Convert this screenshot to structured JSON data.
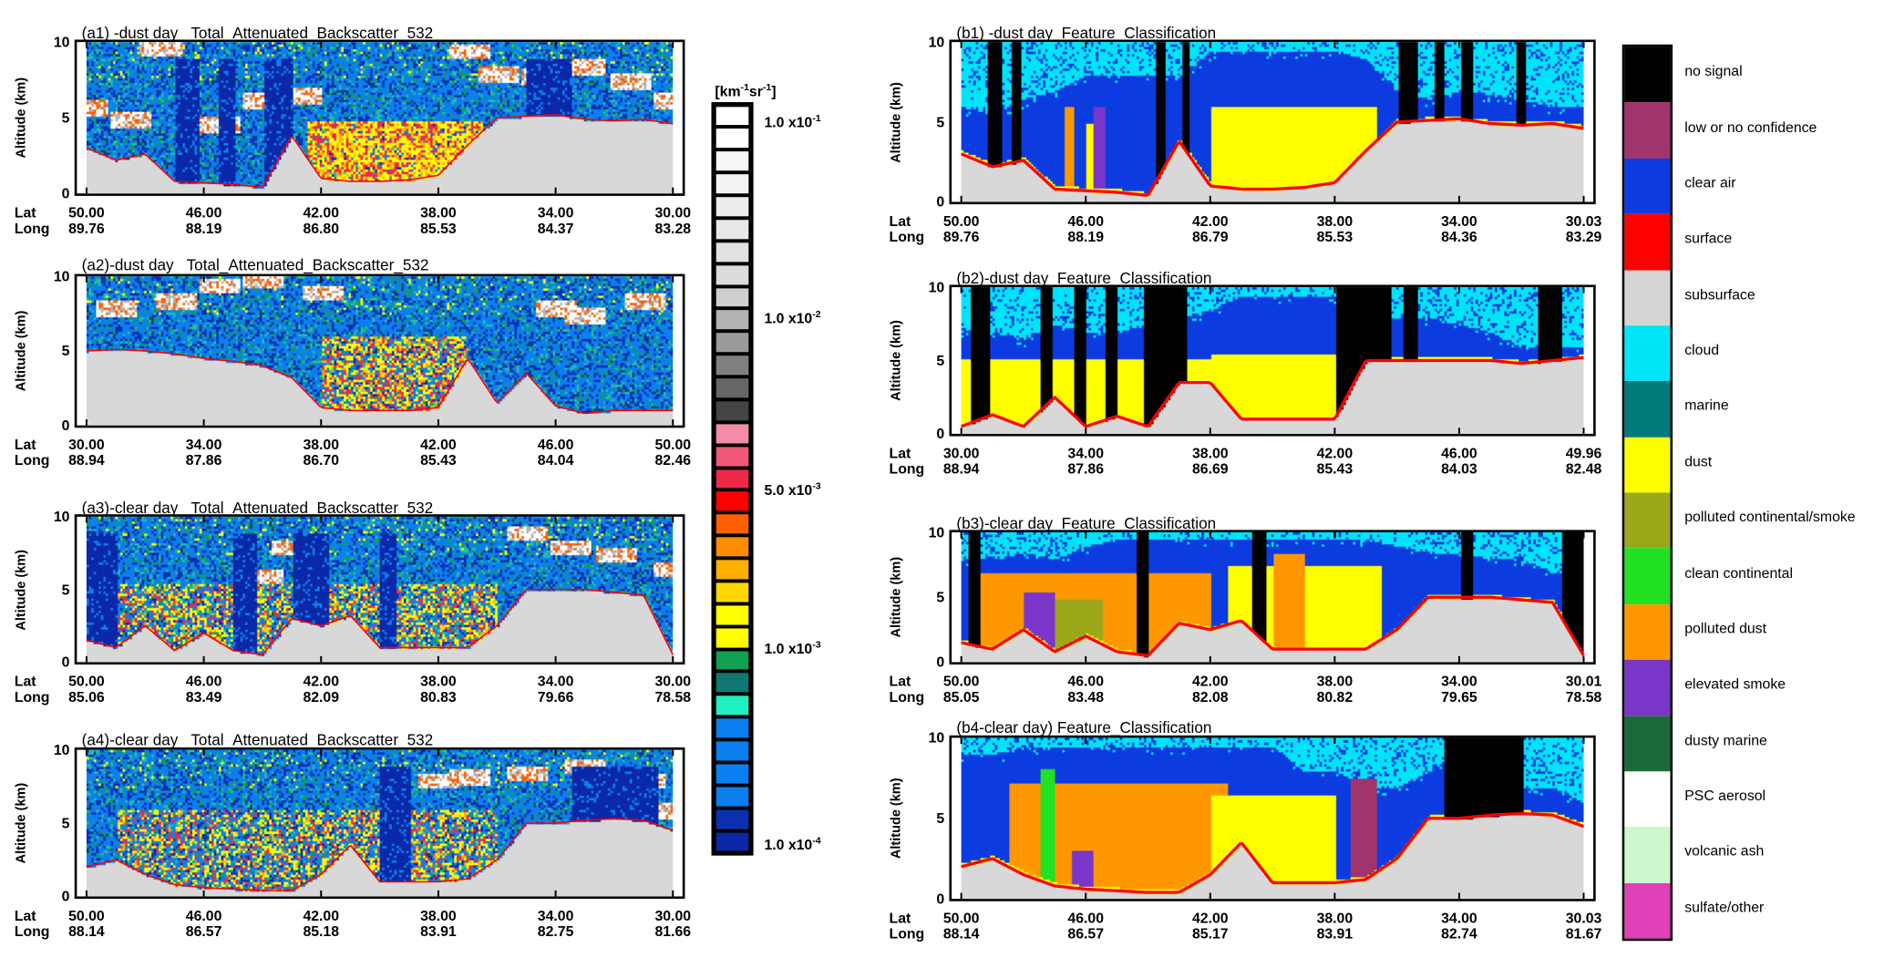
{
  "colorbar": {
    "unit": "[km-1sr-1]",
    "unit_base": "[km",
    "unit_sup1": "-1",
    "unit_mid": "sr",
    "unit_sup2": "-1",
    "unit_end": "]",
    "ticks": [
      {
        "label": "1.0 x10",
        "exp": "-1"
      },
      {
        "label": "1.0 x10",
        "exp": "-2"
      },
      {
        "label": "5.0 x10",
        "exp": "-3"
      },
      {
        "label": "1.0 x10",
        "exp": "-3"
      },
      {
        "label": "1.0 x10",
        "exp": "-4"
      }
    ],
    "swatches": [
      "#ffffff",
      "#ffffff",
      "#f7f7f7",
      "#f2f2f2",
      "#ececec",
      "#e8e8e8",
      "#e2e2e2",
      "#dcdcdc",
      "#cfcfcf",
      "#b4b4b4",
      "#9a9a9a",
      "#808080",
      "#666666",
      "#444444",
      "#f48ca8",
      "#f0587a",
      "#f02848",
      "#ff0000",
      "#ff6000",
      "#ff8c00",
      "#ffb000",
      "#ffd800",
      "#ffff00",
      "#ffff00",
      "#10a050",
      "#107870",
      "#20f0c0",
      "#0a80f0",
      "#0a80f0",
      "#0a80f0",
      "#0a80f0",
      "#0a30b0",
      "#0a28a8"
    ]
  },
  "legend": [
    {
      "label": "no signal",
      "color": "#000000"
    },
    {
      "label": "low or no confidence",
      "color": "#a0346c"
    },
    {
      "label": "clear air",
      "color": "#0c3ce0"
    },
    {
      "label": "surface",
      "color": "#ff0000"
    },
    {
      "label": "subsurface",
      "color": "#d4d4d4"
    },
    {
      "label": "cloud",
      "color": "#00e4f8"
    },
    {
      "label": "marine",
      "color": "#007a7a"
    },
    {
      "label": "dust",
      "color": "#ffff00"
    },
    {
      "label": "polluted continental/smoke",
      "color": "#9aa81a"
    },
    {
      "label": "clean continental",
      "color": "#22e022"
    },
    {
      "label": "polluted dust",
      "color": "#ff9800"
    },
    {
      "label": "elevated smoke",
      "color": "#7a36c8"
    },
    {
      "label": "dusty marine",
      "color": "#1c6a38"
    },
    {
      "label": "PSC aerosol",
      "color": "#ffffff"
    },
    {
      "label": "volcanic ash",
      "color": "#cdf7cd"
    },
    {
      "label": "sulfate/other",
      "color": "#e040b8"
    }
  ],
  "chart_data": [
    {
      "id": "a1",
      "type": "heatmap",
      "title": "(a1) -dust day   Total_Attenuated_Backscatter_532",
      "ylabel": "Altitude (km)",
      "ylim": [
        0,
        10
      ],
      "yticks": [
        "0",
        "5",
        "10"
      ],
      "xrow_labels": [
        "Lat",
        "Long"
      ],
      "lat": [
        "50.00",
        "46.00",
        "42.00",
        "38.00",
        "34.00",
        "30.00"
      ],
      "lon": [
        "89.76",
        "88.19",
        "86.80",
        "85.53",
        "84.37",
        "83.28"
      ],
      "surface_km": [
        3,
        2.2,
        2.6,
        0.8,
        0.7,
        0.6,
        0.4,
        3.8,
        1.0,
        0.8,
        0.8,
        0.9,
        1.2,
        3.2,
        5.0,
        5.1,
        5.2,
        4.9,
        4.8,
        4.9,
        4.6
      ],
      "aerosol": {
        "from": 7.5,
        "to": 13.5,
        "top_km": 4.8,
        "strength": 0.9
      },
      "clouds_km": [
        [
          0,
          5.8
        ],
        [
          1.5,
          5
        ],
        [
          4.5,
          4.6
        ],
        [
          6,
          6.2
        ],
        [
          7.3,
          6.5
        ],
        [
          14,
          8
        ],
        [
          15.5,
          7.8
        ],
        [
          17,
          8.5
        ],
        [
          18.5,
          7.5
        ],
        [
          20,
          6.2
        ],
        [
          2.5,
          9.8
        ],
        [
          13,
          9.5
        ]
      ],
      "attenuated": [
        [
          3,
          3.8
        ],
        [
          4.5,
          5
        ],
        [
          6,
          7
        ],
        [
          15,
          16.5
        ]
      ]
    },
    {
      "id": "a2",
      "type": "heatmap",
      "title": "(a2)-dust day   Total_Attenuated_Backscatter_532",
      "ylabel": "Altitude (km)",
      "ylim": [
        0,
        10
      ],
      "yticks": [
        "0",
        "5",
        "10"
      ],
      "xrow_labels": [
        "Lat",
        "Long"
      ],
      "lat": [
        "30.00",
        "34.00",
        "38.00",
        "42.00",
        "46.00",
        "50.00"
      ],
      "lon": [
        "88.94",
        "87.86",
        "86.70",
        "85.43",
        "84.04",
        "82.46"
      ],
      "surface_km": [
        5,
        5.1,
        5,
        4.8,
        4.5,
        4.3,
        4,
        3.2,
        1.2,
        1,
        1,
        1,
        1.2,
        4.5,
        1.5,
        3.5,
        1.3,
        0.8,
        1,
        1,
        1
      ],
      "aerosol": {
        "from": 8,
        "to": 13,
        "top_km": 6,
        "strength": 0.6
      },
      "clouds_km": [
        [
          1,
          8
        ],
        [
          3,
          8.5
        ],
        [
          4.5,
          9.5
        ],
        [
          6,
          9.8
        ],
        [
          8,
          9
        ],
        [
          16,
          8
        ],
        [
          17,
          7.5
        ],
        [
          19,
          8.5
        ]
      ],
      "attenuated": []
    },
    {
      "id": "a3",
      "type": "heatmap",
      "title": "(a3)-clear day   Total_Attenuated_Backscatter_532",
      "ylabel": "Altitude (km)",
      "ylim": [
        0,
        10
      ],
      "yticks": [
        "0",
        "5",
        "10"
      ],
      "xrow_labels": [
        "Lat",
        "Long"
      ],
      "lat": [
        "50.00",
        "46.00",
        "42.00",
        "38.00",
        "34.00",
        "30.00"
      ],
      "lon": [
        "85.06",
        "83.49",
        "82.09",
        "80.83",
        "79.66",
        "78.58"
      ],
      "surface_km": [
        1.5,
        1,
        2.5,
        0.8,
        2,
        0.8,
        0.5,
        3,
        2.5,
        3.2,
        1,
        1,
        1,
        1,
        2.5,
        5,
        5,
        5,
        4.8,
        4.6,
        0.5
      ],
      "aerosol": {
        "from": 0,
        "to": 14,
        "top_km": 5.5,
        "strength": 0.45
      },
      "clouds_km": [
        [
          0,
          5.5
        ],
        [
          6,
          6
        ],
        [
          7,
          8
        ],
        [
          15,
          9
        ],
        [
          16.5,
          8
        ],
        [
          18,
          7.5
        ],
        [
          20,
          6.5
        ]
      ],
      "attenuated": [
        [
          0,
          1
        ],
        [
          5,
          5.8
        ],
        [
          7,
          8.2
        ],
        [
          10,
          10.5
        ],
        [
          20,
          20.8
        ]
      ]
    },
    {
      "id": "a4",
      "type": "heatmap",
      "title": "(a4)-clear day   Total_Attenuated_Backscatter_532",
      "ylabel": "Altitude (km)",
      "ylim": [
        0,
        10
      ],
      "yticks": [
        "0",
        "5",
        "10"
      ],
      "xrow_labels": [
        "Lat",
        "Long"
      ],
      "lat": [
        "50.00",
        "46.00",
        "42.00",
        "38.00",
        "34.00",
        "30.00"
      ],
      "lon": [
        "88.14",
        "86.57",
        "85.18",
        "83.91",
        "82.75",
        "81.66"
      ],
      "surface_km": [
        2,
        2.5,
        1.5,
        0.8,
        0.6,
        0.5,
        0.4,
        0.4,
        1.5,
        3.5,
        1,
        1,
        1,
        1.2,
        2.5,
        5,
        5,
        5.2,
        5.3,
        5.2,
        4.5
      ],
      "aerosol": {
        "from": 1,
        "to": 14,
        "top_km": 6,
        "strength": 0.45
      },
      "clouds_km": [
        [
          12,
          8
        ],
        [
          13,
          8.2
        ],
        [
          15,
          8.5
        ],
        [
          17,
          9
        ],
        [
          19,
          8
        ],
        [
          20,
          6
        ]
      ],
      "attenuated": [
        [
          10,
          11
        ],
        [
          16.5,
          19.5
        ]
      ]
    },
    {
      "id": "b1",
      "type": "heatmap",
      "title": "(b1) -dust day  Feature_Classification",
      "ylabel": "Altitude (km)",
      "ylim": [
        0,
        10
      ],
      "yticks": [
        "0",
        "5",
        "10"
      ],
      "xrow_labels": [
        "Lat",
        "Long"
      ],
      "lat": [
        "50.00",
        "46.00",
        "42.00",
        "38.00",
        "34.00",
        "30.03"
      ],
      "lon": [
        "89.76",
        "88.19",
        "86.79",
        "85.53",
        "84.36",
        "83.29"
      ],
      "surface_km": [
        3,
        2.2,
        2.6,
        0.8,
        0.7,
        0.6,
        0.4,
        3.8,
        1.0,
        0.8,
        0.8,
        0.9,
        1.2,
        3.2,
        5.0,
        5.1,
        5.2,
        4.9,
        4.8,
        4.9,
        4.6
      ],
      "layers": [
        {
          "type": "dust",
          "from": 8,
          "to": 13.3,
          "top_km": 6
        },
        {
          "type": "polluted dust",
          "from": 3.3,
          "to": 3.6,
          "top_km": 6
        },
        {
          "type": "elevated smoke",
          "from": 4.2,
          "to": 4.6,
          "top_km": 6
        },
        {
          "type": "dust",
          "from": 4,
          "to": 4.2,
          "top_km": 5
        }
      ],
      "cloud_base_km": [
        6,
        5.5,
        6.5,
        7,
        8,
        8,
        8,
        8,
        9.5,
        9.5,
        9.5,
        9.5,
        9.5,
        9,
        7,
        6.5,
        7,
        6.8,
        6.5,
        6,
        6
      ],
      "no_signal": [
        [
          0.8,
          1.3
        ],
        [
          1.6,
          1.9
        ],
        [
          6.2,
          6.5
        ],
        [
          7.1,
          7.3
        ],
        [
          14,
          14.6
        ],
        [
          15.2,
          15.5
        ],
        [
          16,
          16.4
        ],
        [
          17.8,
          18.1
        ]
      ]
    },
    {
      "id": "b2",
      "type": "heatmap",
      "title": "(b2)-dust day  Feature_Classification",
      "ylabel": "Altitude (km)",
      "ylim": [
        0,
        10
      ],
      "yticks": [
        "0",
        "5",
        "10"
      ],
      "xrow_labels": [
        "Lat",
        "Long"
      ],
      "lat": [
        "30.00",
        "34.00",
        "38.00",
        "42.00",
        "46.00",
        "49.96"
      ],
      "lon": [
        "88.94",
        "87.86",
        "86.69",
        "85.43",
        "84.03",
        "82.48"
      ],
      "surface_km": [
        0.5,
        1.3,
        0.5,
        2.5,
        0.5,
        1.2,
        0.5,
        3.5,
        3.5,
        1,
        1,
        1,
        1,
        5,
        5,
        5,
        5,
        5,
        4.8,
        5,
        5.2
      ],
      "layers": [
        {
          "type": "dust",
          "from": 8,
          "to": 12,
          "top_km": 5.5
        },
        {
          "type": "polluted dust",
          "from": 15.5,
          "to": 16.3,
          "top_km": 3
        },
        {
          "type": "dust",
          "from": 0,
          "to": 8,
          "top_km": 5.2
        }
      ],
      "cloud_base_km": [
        7,
        7,
        6.5,
        7.5,
        7,
        7,
        7.5,
        8,
        8.5,
        9.5,
        9.5,
        9.5,
        9.5,
        8,
        8,
        8,
        7.5,
        7,
        6,
        6,
        6
      ],
      "no_signal": [
        [
          0.3,
          0.9
        ],
        [
          2.5,
          2.9
        ],
        [
          3.6,
          4
        ],
        [
          4.6,
          5
        ],
        [
          5.8,
          7.2
        ],
        [
          12,
          13.8
        ],
        [
          14.2,
          14.6
        ],
        [
          18.5,
          19.3
        ],
        [
          20.2,
          20.6
        ]
      ]
    },
    {
      "id": "b3",
      "type": "heatmap",
      "title": "(b3)-clear day  Feature_Classification",
      "ylabel": "Altitude (km)",
      "ylim": [
        0,
        10
      ],
      "yticks": [
        "0",
        "5",
        "10"
      ],
      "xrow_labels": [
        "Lat",
        "Long"
      ],
      "lat": [
        "50.00",
        "46.00",
        "42.00",
        "38.00",
        "34.00",
        "30.01"
      ],
      "lon": [
        "85.05",
        "83.48",
        "82.08",
        "80.82",
        "79.65",
        "78.58"
      ],
      "surface_km": [
        1.5,
        1,
        2.5,
        0.8,
        2,
        0.8,
        0.5,
        3,
        2.5,
        3.2,
        1,
        1,
        1,
        1,
        2.5,
        5,
        5,
        5,
        4.8,
        4.6,
        0.5
      ],
      "layers": [
        {
          "type": "polluted dust",
          "from": 0.5,
          "to": 8,
          "top_km": 7
        },
        {
          "type": "elevated smoke",
          "from": 2,
          "to": 3,
          "top_km": 5.5
        },
        {
          "type": "polluted continental/smoke",
          "from": 3,
          "to": 4.5,
          "top_km": 5
        },
        {
          "type": "dust",
          "from": 8.5,
          "to": 13.5,
          "top_km": 7.5
        },
        {
          "type": "polluted dust",
          "from": 10,
          "to": 11,
          "top_km": 8.5
        }
      ],
      "cloud_base_km": [
        8,
        8,
        8.5,
        8,
        9,
        9.5,
        9.5,
        9.5,
        9.5,
        9.5,
        9.5,
        9.5,
        9.5,
        9.5,
        9,
        8.5,
        8.5,
        8,
        8,
        7,
        7
      ],
      "no_signal": [
        [
          0.2,
          0.6
        ],
        [
          5.6,
          6
        ],
        [
          9.3,
          9.8
        ],
        [
          16,
          16.4
        ],
        [
          19.3,
          20
        ]
      ]
    },
    {
      "id": "b4",
      "type": "heatmap",
      "title": "(b4-clear day) Feature_Classification",
      "ylabel": "Altitude (km)",
      "ylim": [
        0,
        10
      ],
      "yticks": [
        "0",
        "5",
        "10"
      ],
      "xrow_labels": [
        "Lat",
        "Long"
      ],
      "lat": [
        "50.00",
        "46.00",
        "42.00",
        "38.00",
        "34.00",
        "30.03"
      ],
      "lon": [
        "88.14",
        "86.57",
        "85.17",
        "83.91",
        "82.74",
        "81.67"
      ],
      "surface_km": [
        2,
        2.5,
        1.5,
        0.8,
        0.6,
        0.5,
        0.4,
        0.4,
        1.5,
        3.5,
        1,
        1,
        1,
        1.2,
        2.5,
        5,
        5,
        5.2,
        5.3,
        5.2,
        4.5
      ],
      "layers": [
        {
          "type": "polluted dust",
          "from": 1.5,
          "to": 8.5,
          "top_km": 7.3
        },
        {
          "type": "elevated smoke",
          "from": 3.5,
          "to": 4.2,
          "top_km": 3
        },
        {
          "type": "dust",
          "from": 8,
          "to": 12,
          "top_km": 6.5
        },
        {
          "type": "low or no confidence",
          "from": 12.5,
          "to": 13.3,
          "top_km": 7.5
        },
        {
          "type": "clean continental",
          "from": 2.5,
          "to": 3,
          "top_km": 8.2
        }
      ],
      "cloud_base_km": [
        9,
        9,
        9.5,
        9.5,
        9.5,
        9.5,
        9.5,
        9.5,
        9.5,
        9.5,
        9.5,
        8,
        8,
        7,
        7,
        8,
        9,
        8.5,
        7,
        7,
        6
      ],
      "no_signal": [
        [
          15.5,
          18
        ]
      ]
    }
  ]
}
